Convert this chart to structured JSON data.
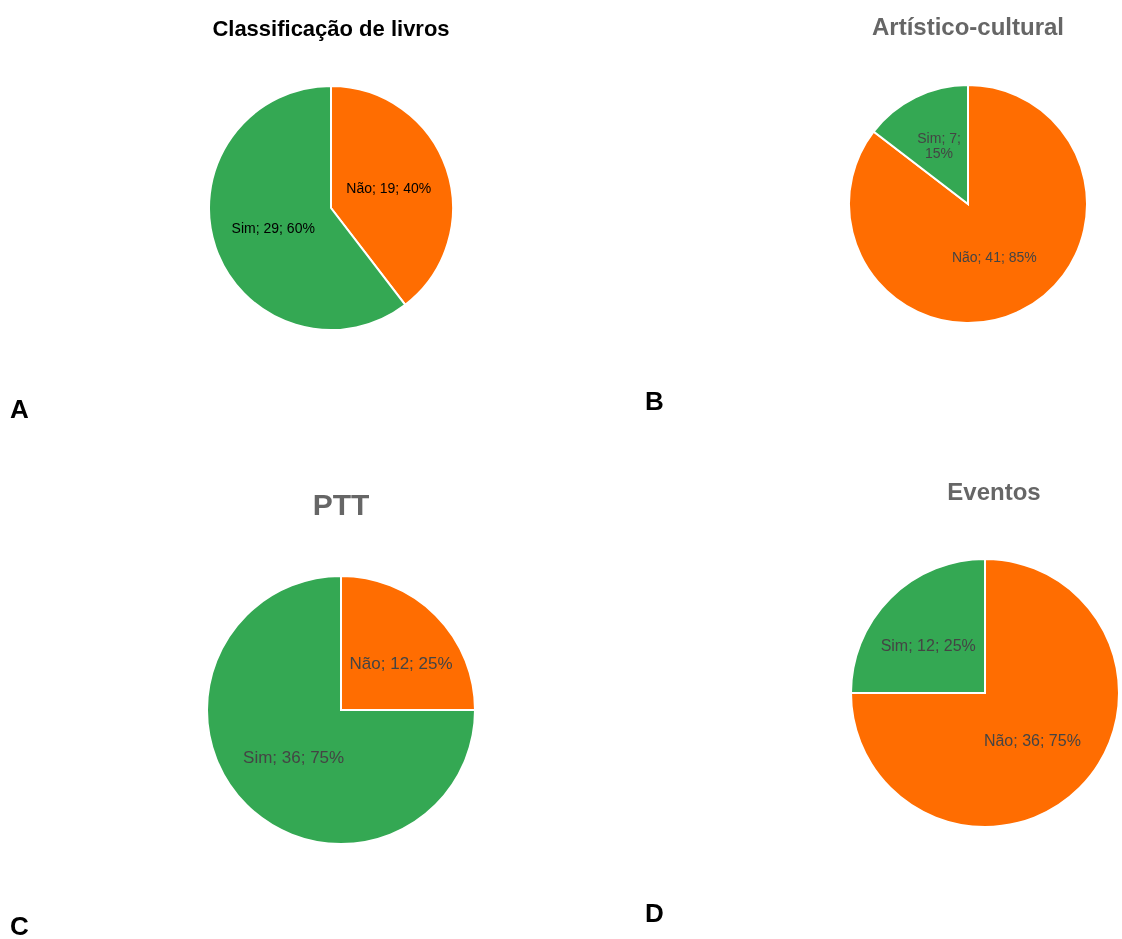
{
  "chart_data": [
    {
      "type": "pie",
      "title": "Classificação de livros",
      "categories": [
        "Não",
        "Sim"
      ],
      "values": [
        19,
        29
      ],
      "colors": [
        "#ff6d01",
        "#34a853"
      ],
      "value_labels": [
        "; 19; 40%",
        "; 29; 60%"
      ],
      "annotations": [
        "A"
      ]
    },
    {
      "type": "pie",
      "title": "Artístico-cultural",
      "categories": [
        "Não",
        "Sim"
      ],
      "values": [
        41,
        7
      ],
      "colors": [
        "#ff6d01",
        "#34a853"
      ],
      "value_labels": [
        "; 41; 85%",
        "; 7; 15%"
      ],
      "annotations": [
        "B"
      ]
    },
    {
      "type": "pie",
      "title": "PTT",
      "categories": [
        "Não",
        "Sim"
      ],
      "values": [
        12,
        36
      ],
      "colors": [
        "#ff6d01",
        "#34a853"
      ],
      "value_labels": [
        "; 12; 25%",
        "; 36; 75%"
      ],
      "annotations": [
        "C"
      ]
    },
    {
      "type": "pie",
      "title": "Eventos",
      "categories": [
        "Não",
        "Sim"
      ],
      "values": [
        36,
        12
      ],
      "colors": [
        "#ff6d01",
        "#34a853"
      ],
      "value_labels": [
        "; 36; 75%",
        "; 12; 25%"
      ],
      "annotations": [
        "D"
      ]
    }
  ]
}
